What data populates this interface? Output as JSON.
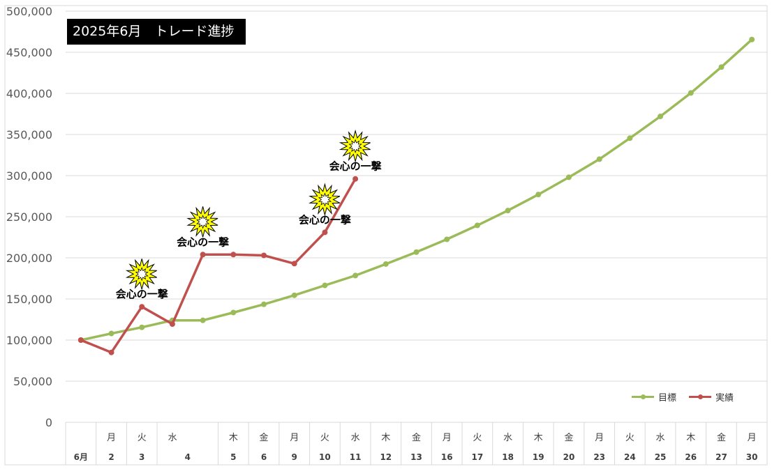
{
  "title": "2025年6月　トレード進捗",
  "colors": {
    "target": "#9bbb59",
    "actual": "#c0504d",
    "grid": "#d9d9d9",
    "burst": "#ffff00"
  },
  "chart_data": {
    "type": "line",
    "title": "2025年6月　トレード進捗",
    "ylim": [
      0,
      500000
    ],
    "yticks": [
      "0",
      "50,000",
      "100,000",
      "150,000",
      "200,000",
      "250,000",
      "300,000",
      "350,000",
      "400,000",
      "450,000",
      "500,000"
    ],
    "ytick_values": [
      0,
      50000,
      100000,
      150000,
      200000,
      250000,
      300000,
      350000,
      400000,
      450000,
      500000
    ],
    "grid": true,
    "legend_position": "bottom-right",
    "categories": [
      {
        "weekday": "",
        "day": "6月"
      },
      {
        "weekday": "月",
        "day": "2"
      },
      {
        "weekday": "火",
        "day": "3"
      },
      {
        "weekday": "水",
        "day": ""
      },
      {
        "weekday": "",
        "day": "4"
      },
      {
        "weekday": "木",
        "day": "5"
      },
      {
        "weekday": "金",
        "day": "6"
      },
      {
        "weekday": "月",
        "day": "9"
      },
      {
        "weekday": "火",
        "day": "10"
      },
      {
        "weekday": "水",
        "day": "11"
      },
      {
        "weekday": "木",
        "day": "12"
      },
      {
        "weekday": "金",
        "day": "13"
      },
      {
        "weekday": "月",
        "day": "16"
      },
      {
        "weekday": "火",
        "day": "17"
      },
      {
        "weekday": "水",
        "day": "18"
      },
      {
        "weekday": "木",
        "day": "19"
      },
      {
        "weekday": "金",
        "day": "20"
      },
      {
        "weekday": "月",
        "day": "23"
      },
      {
        "weekday": "火",
        "day": "24"
      },
      {
        "weekday": "水",
        "day": "25"
      },
      {
        "weekday": "木",
        "day": "26"
      },
      {
        "weekday": "金",
        "day": "27"
      },
      {
        "weekday": "月",
        "day": "30"
      }
    ],
    "series": [
      {
        "name": "目標",
        "values": [
          100000,
          108000,
          115500,
          124000,
          124000,
          133500,
          143500,
          154500,
          166500,
          178500,
          192500,
          207000,
          222500,
          239500,
          257500,
          277000,
          298000,
          320000,
          345500,
          372000,
          400500,
          432000,
          465500
        ]
      },
      {
        "name": "実績",
        "values": [
          100000,
          85000,
          140500,
          119500,
          204000,
          204000,
          203000,
          193000,
          231000,
          296000,
          null,
          null,
          null,
          null,
          null,
          null,
          null,
          null,
          null,
          null,
          null,
          null,
          null
        ]
      }
    ],
    "annotations": [
      {
        "text": "会心の一撃",
        "index": 2,
        "value": 140500
      },
      {
        "text": "会心の一撃",
        "index": 4,
        "value": 204000
      },
      {
        "text": "会心の一撃",
        "index": 8,
        "value": 231000
      },
      {
        "text": "会心の一撃",
        "index": 9,
        "value": 296000
      }
    ]
  }
}
